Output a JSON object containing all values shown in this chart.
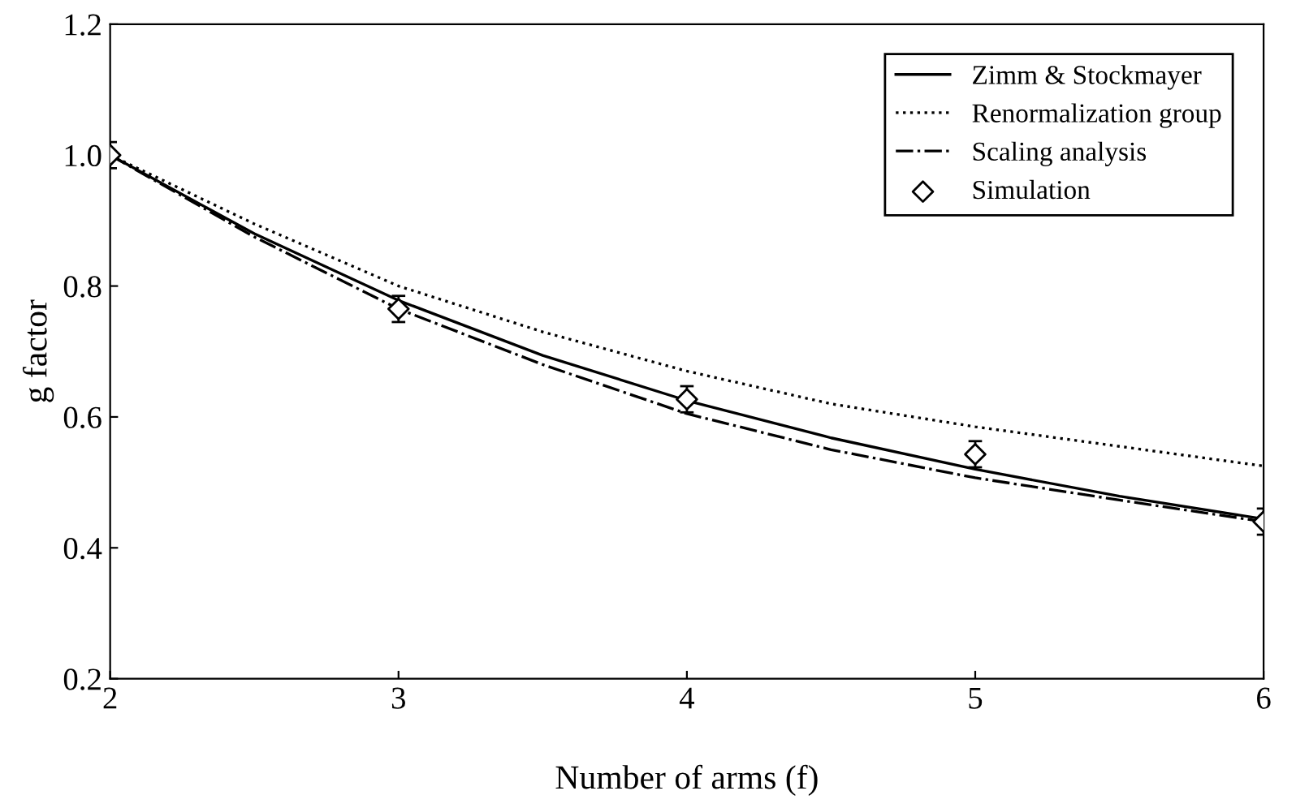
{
  "chart_data": {
    "type": "line",
    "xlabel": "Number of arms (f)",
    "ylabel": "g factor",
    "xlim": [
      2,
      6
    ],
    "xticks": [
      2,
      3,
      4,
      5,
      6
    ],
    "ylim": [
      0.2,
      1.2
    ],
    "yticks": [
      0.2,
      0.4,
      0.6,
      0.8,
      {
        "value": 1.0,
        "label": "1.0"
      },
      1.2
    ],
    "grid": false,
    "legend": "top right",
    "series": [
      {
        "name": "Zimm & Stockmayer",
        "color": "#000000",
        "line_style": "solid",
        "marker": "none",
        "x": [
          2,
          2.5,
          3,
          3.5,
          4,
          4.5,
          5,
          5.5,
          6
        ],
        "values": [
          1.0,
          0.88,
          0.778,
          0.694,
          0.625,
          0.568,
          0.52,
          0.479,
          0.444
        ]
      },
      {
        "name": "Renormalization group",
        "color": "#000000",
        "line_style": "dotted",
        "marker": "none",
        "x": [
          2,
          2.5,
          3,
          3.5,
          4,
          4.5,
          5,
          5.5,
          6
        ],
        "values": [
          1.0,
          0.895,
          0.8,
          0.73,
          0.67,
          0.62,
          0.585,
          0.555,
          0.525
        ]
      },
      {
        "name": "Scaling analysis",
        "color": "#000000",
        "line_style": "dashdot",
        "marker": "none",
        "x": [
          2,
          2.5,
          3,
          3.5,
          4,
          4.5,
          5,
          5.5,
          6
        ],
        "values": [
          1.0,
          0.875,
          0.765,
          0.68,
          0.605,
          0.55,
          0.507,
          0.473,
          0.44
        ]
      },
      {
        "name": "Simulation",
        "type": "scatter",
        "color": "#000000",
        "marker": "diamond",
        "x": [
          2,
          3,
          4,
          5,
          6
        ],
        "values": [
          1.0,
          0.765,
          0.627,
          0.543,
          0.44
        ],
        "errors": [
          0.02,
          0.02,
          0.02,
          0.02,
          0.02
        ]
      }
    ]
  }
}
